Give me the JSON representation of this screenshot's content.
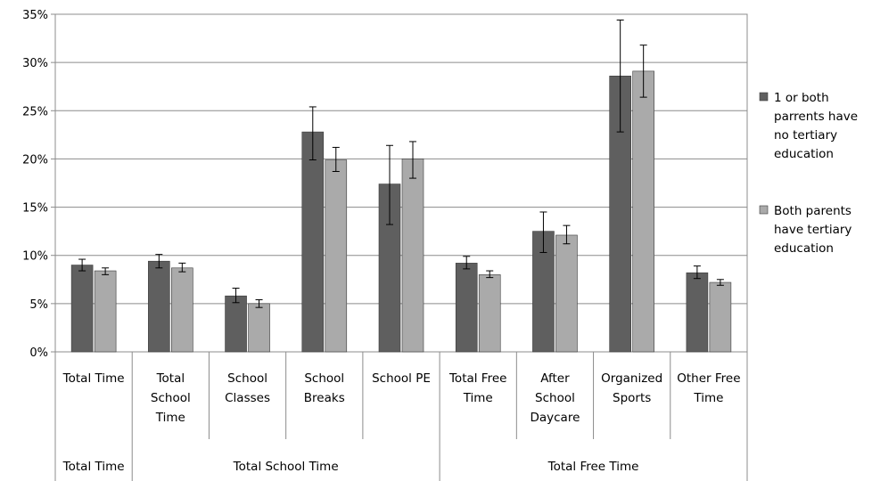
{
  "chart_data": {
    "type": "bar",
    "title": "",
    "xlabel": "",
    "ylabel": "",
    "ylim": [
      0,
      35
    ],
    "y_ticks": [
      "0%",
      "5%",
      "10%",
      "15%",
      "20%",
      "25%",
      "30%",
      "35%"
    ],
    "grid": true,
    "legend_position": "right",
    "categories": [
      [
        "Total Time"
      ],
      [
        "Total",
        "School",
        "Time"
      ],
      [
        "School",
        "Classes"
      ],
      [
        "School",
        "Breaks"
      ],
      [
        "School PE"
      ],
      [
        "Total Free",
        "Time"
      ],
      [
        "After",
        "School",
        "Daycare"
      ],
      [
        "Organized",
        "Sports"
      ],
      [
        "Other Free",
        "Time"
      ]
    ],
    "groups": [
      {
        "label": "Total Time",
        "start": 0,
        "end": 0
      },
      {
        "label": "Total School  Time",
        "start": 1,
        "end": 4
      },
      {
        "label": "Total Free Time",
        "start": 5,
        "end": 8
      }
    ],
    "series": [
      {
        "name_lines": [
          "1 or both",
          "parrents have",
          "no tertiary",
          "education"
        ],
        "color": "#5f5f5f",
        "values": [
          9.0,
          9.4,
          5.8,
          22.8,
          17.4,
          9.2,
          12.5,
          28.6,
          8.2
        ],
        "error_low": [
          8.4,
          8.7,
          5.1,
          19.9,
          13.2,
          8.6,
          10.3,
          22.8,
          7.6
        ],
        "error_high": [
          9.6,
          10.1,
          6.6,
          25.4,
          21.4,
          9.9,
          14.5,
          34.4,
          8.9
        ]
      },
      {
        "name_lines": [
          "Both parents",
          "have tertiary",
          "education"
        ],
        "color": "#aaaaaa",
        "values": [
          8.4,
          8.7,
          5.0,
          19.9,
          20.0,
          8.0,
          12.1,
          29.1,
          7.2
        ],
        "error_low": [
          8.0,
          8.3,
          4.6,
          18.7,
          18.0,
          7.7,
          11.2,
          26.4,
          6.9
        ],
        "error_high": [
          8.7,
          9.2,
          5.4,
          21.2,
          21.8,
          8.4,
          13.1,
          31.8,
          7.5
        ]
      }
    ]
  }
}
